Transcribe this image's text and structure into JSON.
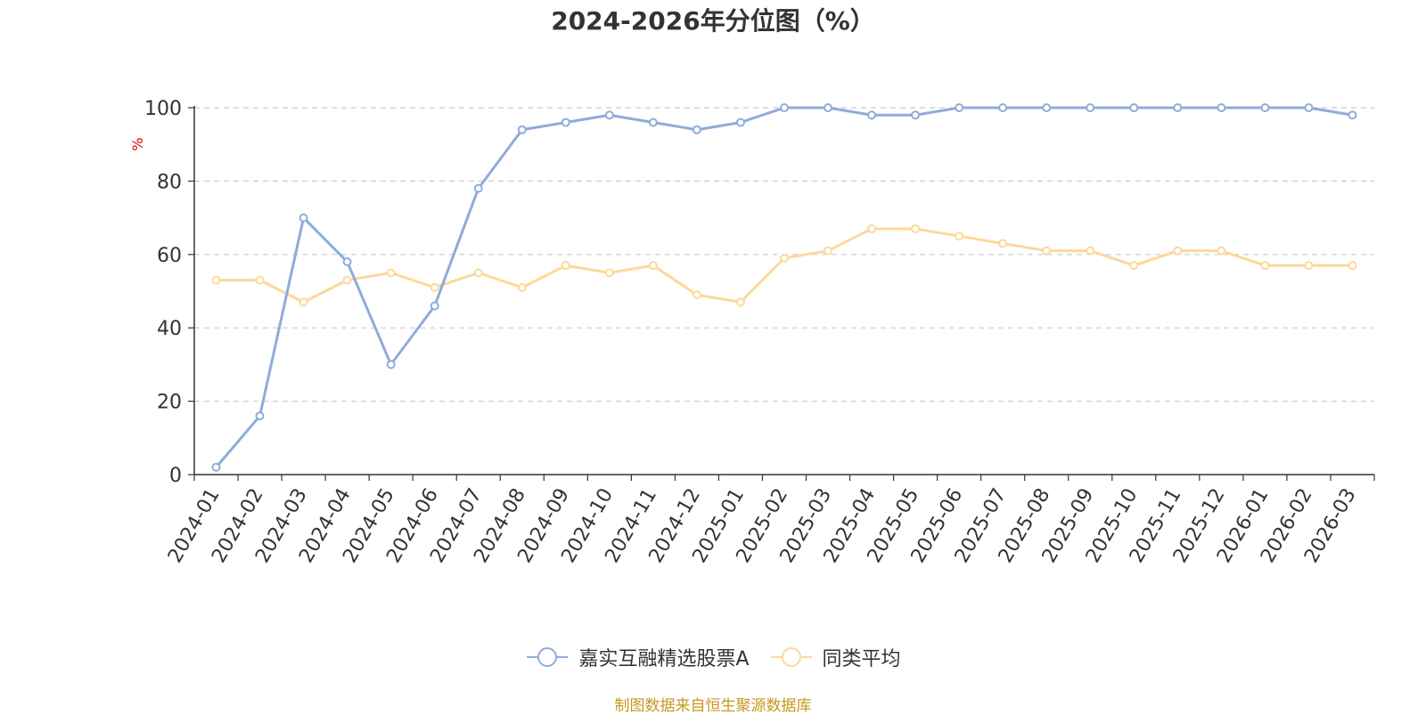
{
  "source_note": "制图数据来自恒生聚源数据库",
  "colors": {
    "series1": "#8eacd9",
    "series2": "#fcd99a",
    "grid": "#cccccc",
    "axis": "#333333",
    "ylabel": "#e00000",
    "source": "#c8961e"
  },
  "chart_data": {
    "type": "line",
    "title": "2024-2026年分位图（%）",
    "ylabel": "%",
    "xlabel": "",
    "ylim": [
      0,
      100
    ],
    "yticks": [
      "0",
      "20",
      "40",
      "60",
      "80",
      "100"
    ],
    "grid": true,
    "legend_position": "bottom",
    "categories": [
      "2024-01",
      "2024-02",
      "2024-03",
      "2024-04",
      "2024-05",
      "2024-06",
      "2024-07",
      "2024-08",
      "2024-09",
      "2024-10",
      "2024-11",
      "2024-12",
      "2025-01",
      "2025-02",
      "2025-03",
      "2025-04",
      "2025-05",
      "2025-06",
      "2025-07",
      "2025-08",
      "2025-09",
      "2025-10",
      "2025-11",
      "2025-12",
      "2026-01",
      "2026-02",
      "2026-03"
    ],
    "series": [
      {
        "name": "嘉实互融精选股票A",
        "values": [
          2,
          16,
          70,
          58,
          30,
          46,
          78,
          94,
          96,
          98,
          96,
          94,
          96,
          100,
          100,
          98,
          98,
          100,
          100,
          100,
          100,
          100,
          100,
          100,
          100,
          100,
          98
        ]
      },
      {
        "name": "同类平均",
        "values": [
          53,
          53,
          47,
          53,
          55,
          51,
          55,
          51,
          57,
          55,
          57,
          49,
          47,
          59,
          61,
          67,
          67,
          65,
          63,
          61,
          61,
          57,
          61,
          61,
          57,
          57,
          57
        ]
      }
    ]
  }
}
